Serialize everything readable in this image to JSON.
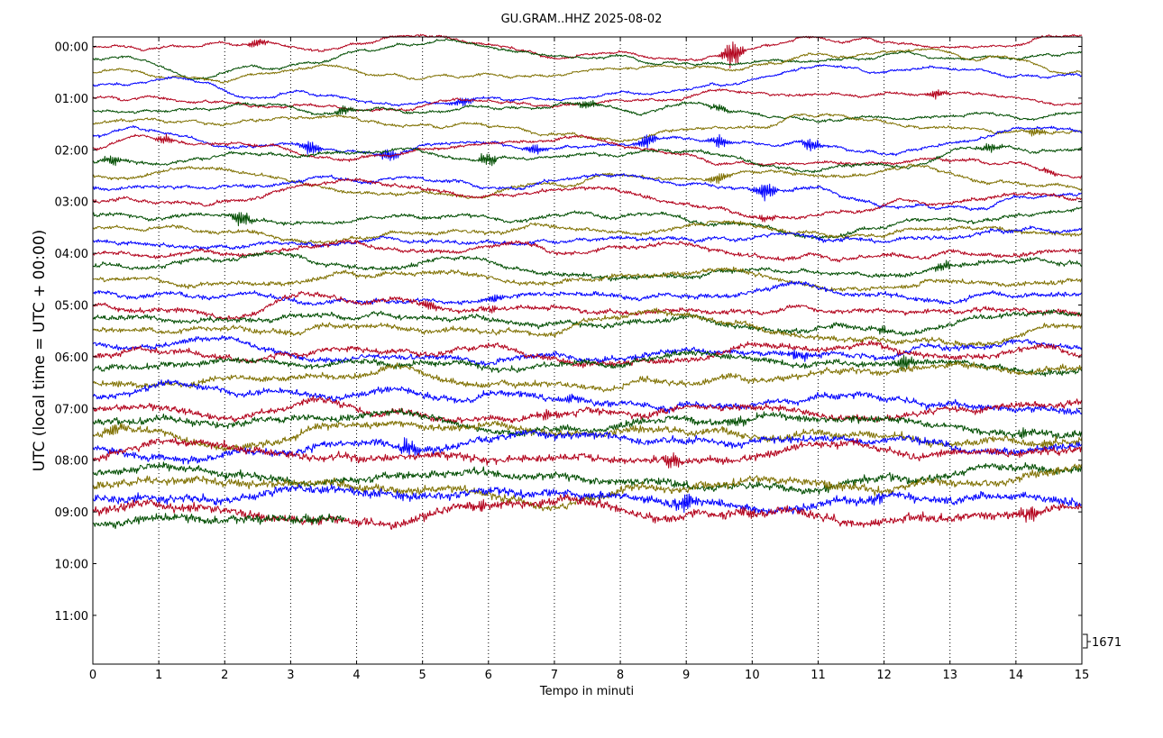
{
  "chart_data": {
    "type": "line",
    "title": "GU.GRAM..HHZ 2025-08-02",
    "xlabel": "Tempo in minuti",
    "ylabel": "UTC (local time = UTC + 00:00)",
    "xlim": [
      0,
      15
    ],
    "x_ticks": [
      "0",
      "1",
      "2",
      "3",
      "4",
      "5",
      "6",
      "7",
      "8",
      "9",
      "10",
      "11",
      "12",
      "13",
      "14",
      "15"
    ],
    "y_ticks": [
      "00:00",
      "01:00",
      "02:00",
      "03:00",
      "04:00",
      "05:00",
      "06:00",
      "07:00",
      "08:00",
      "09:00",
      "10:00",
      "11:00"
    ],
    "grid": "vertical dotted",
    "scale_label": "1671",
    "trace_colors": [
      "#b2001a",
      "#004d00",
      "#7f7000",
      "#0000ff"
    ],
    "traces_per_hour": 4,
    "minutes_per_trace": 15,
    "traces": [
      {
        "start": "00:00",
        "duration_min": 15,
        "events": [
          {
            "t": 2.5,
            "amp": 5
          },
          {
            "t": 9.7,
            "amp": 16
          }
        ]
      },
      {
        "start": "00:15",
        "duration_min": 15,
        "events": []
      },
      {
        "start": "00:30",
        "duration_min": 15,
        "events": []
      },
      {
        "start": "00:45",
        "duration_min": 15,
        "events": [
          {
            "t": 5.6,
            "amp": 6
          }
        ]
      },
      {
        "start": "01:00",
        "duration_min": 15,
        "events": [
          {
            "t": 12.8,
            "amp": 6
          }
        ]
      },
      {
        "start": "01:15",
        "duration_min": 15,
        "events": [
          {
            "t": 3.8,
            "amp": 6
          },
          {
            "t": 7.5,
            "amp": 6
          },
          {
            "t": 9.5,
            "amp": 5
          }
        ]
      },
      {
        "start": "01:30",
        "duration_min": 15,
        "events": [
          {
            "t": 14.3,
            "amp": 5
          }
        ]
      },
      {
        "start": "01:45",
        "duration_min": 15,
        "events": [
          {
            "t": 3.3,
            "amp": 9
          },
          {
            "t": 4.5,
            "amp": 8
          },
          {
            "t": 6.7,
            "amp": 6
          },
          {
            "t": 8.4,
            "amp": 9
          },
          {
            "t": 9.5,
            "amp": 8
          },
          {
            "t": 10.9,
            "amp": 8
          }
        ]
      },
      {
        "start": "02:00",
        "duration_min": 15,
        "events": [
          {
            "t": 1.1,
            "amp": 5
          },
          {
            "t": 14.5,
            "amp": 3
          }
        ]
      },
      {
        "start": "02:15",
        "duration_min": 15,
        "events": [
          {
            "t": 0.3,
            "amp": 6
          },
          {
            "t": 6.0,
            "amp": 8
          },
          {
            "t": 13.6,
            "amp": 6
          }
        ]
      },
      {
        "start": "02:30",
        "duration_min": 15,
        "events": [
          {
            "t": 9.5,
            "amp": 7
          }
        ]
      },
      {
        "start": "02:45",
        "duration_min": 15,
        "events": [
          {
            "t": 10.2,
            "amp": 12
          }
        ]
      },
      {
        "start": "03:00",
        "duration_min": 15,
        "events": [
          {
            "t": 10.2,
            "amp": 4
          }
        ]
      },
      {
        "start": "03:15",
        "duration_min": 15,
        "events": [
          {
            "t": 2.25,
            "amp": 11
          }
        ]
      },
      {
        "start": "03:30",
        "duration_min": 15,
        "events": []
      },
      {
        "start": "03:45",
        "duration_min": 15,
        "events": []
      },
      {
        "start": "04:00",
        "duration_min": 15,
        "events": []
      },
      {
        "start": "04:15",
        "duration_min": 15,
        "events": [
          {
            "t": 12.9,
            "amp": 6
          }
        ]
      },
      {
        "start": "04:30",
        "duration_min": 15,
        "events": []
      },
      {
        "start": "04:45",
        "duration_min": 15,
        "events": [
          {
            "t": 6.1,
            "amp": 5
          }
        ]
      },
      {
        "start": "05:00",
        "duration_min": 15,
        "events": [
          {
            "t": 6.0,
            "amp": 4
          },
          {
            "t": 5.1,
            "amp": 5
          }
        ]
      },
      {
        "start": "05:15",
        "duration_min": 15,
        "events": [
          {
            "t": 12.0,
            "amp": 4
          }
        ]
      },
      {
        "start": "05:30",
        "duration_min": 15,
        "events": []
      },
      {
        "start": "05:45",
        "duration_min": 15,
        "events": [
          {
            "t": 10.7,
            "amp": 6
          }
        ]
      },
      {
        "start": "06:00",
        "duration_min": 15,
        "events": []
      },
      {
        "start": "06:15",
        "duration_min": 15,
        "events": [
          {
            "t": 12.3,
            "amp": 9
          }
        ]
      },
      {
        "start": "06:30",
        "duration_min": 15,
        "events": []
      },
      {
        "start": "06:45",
        "duration_min": 15,
        "events": [
          {
            "t": 7.3,
            "amp": 5
          }
        ]
      },
      {
        "start": "07:00",
        "duration_min": 15,
        "events": [
          {
            "t": 6.9,
            "amp": 5
          }
        ]
      },
      {
        "start": "07:15",
        "duration_min": 15,
        "events": [
          {
            "t": 9.8,
            "amp": 6
          },
          {
            "t": 14.1,
            "amp": 5
          }
        ]
      },
      {
        "start": "07:30",
        "duration_min": 15,
        "events": [
          {
            "t": 0.3,
            "amp": 9
          },
          {
            "t": 14.5,
            "amp": 6
          }
        ]
      },
      {
        "start": "07:45",
        "duration_min": 15,
        "events": [
          {
            "t": 4.8,
            "amp": 12
          }
        ]
      },
      {
        "start": "08:00",
        "duration_min": 15,
        "events": [
          {
            "t": 8.8,
            "amp": 10
          }
        ]
      },
      {
        "start": "08:15",
        "duration_min": 15,
        "events": []
      },
      {
        "start": "08:30",
        "duration_min": 15,
        "events": []
      },
      {
        "start": "08:45",
        "duration_min": 15,
        "events": [
          {
            "t": 9.0,
            "amp": 10
          },
          {
            "t": 11.9,
            "amp": 6
          }
        ]
      },
      {
        "start": "09:00",
        "duration_min": 15,
        "events": [
          {
            "t": 5.9,
            "amp": 6
          },
          {
            "t": 9.9,
            "amp": 6
          },
          {
            "t": 14.2,
            "amp": 9
          }
        ]
      },
      {
        "start": "09:15",
        "duration_min": 3.82,
        "events": [
          {
            "t": 3.4,
            "amp": 5
          }
        ]
      }
    ]
  }
}
